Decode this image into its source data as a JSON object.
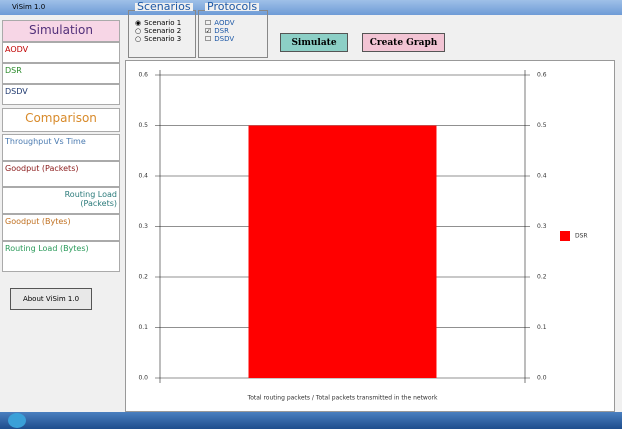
{
  "window_title": "ViSim 1.0",
  "sidebar": {
    "simulation": "Simulation",
    "protocols": [
      "AODV",
      "DSR",
      "DSDV"
    ],
    "comparison": "Comparison",
    "items": [
      "Throughput Vs Time",
      "Goodput (Packets)",
      "Routing Load (Packets)",
      "Goodput (Bytes)",
      "Routing Load (Bytes)"
    ],
    "about": "About ViSim 1.0"
  },
  "scenarios": {
    "title": "Scenarios",
    "options": [
      "Scenario 1",
      "Scenario 2",
      "Scenario 3"
    ],
    "selected": 0
  },
  "protocols": {
    "title": "Protocols",
    "options": [
      "AODV",
      "DSR",
      "DSDV"
    ],
    "checked": [
      false,
      true,
      false
    ]
  },
  "buttons": [
    "Simulate",
    "Create Graph"
  ],
  "chart_data": {
    "type": "bar",
    "categories": [
      null
    ],
    "series": [
      {
        "name": "DSR",
        "color": "#ff0000",
        "values": [
          0.5
        ]
      }
    ],
    "xlabel": "Total routing packets / Total packets transmitted in the network",
    "ylim": [
      0,
      0.6
    ],
    "yticks": [
      {
        "value": 0,
        "label": "0.0"
      },
      0.1,
      0.2,
      0.3,
      0.4,
      0.5,
      0.6
    ],
    "grid": true,
    "legend": "right"
  }
}
